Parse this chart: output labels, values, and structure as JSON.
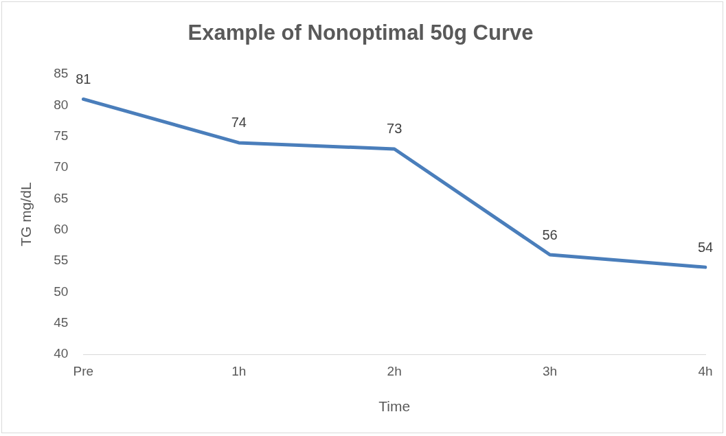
{
  "chart_data": {
    "type": "line",
    "title": "Example of Nonoptimal 50g Curve",
    "xlabel": "Time",
    "ylabel": "TG mg/dL",
    "categories": [
      "Pre",
      "1h",
      "2h",
      "3h",
      "4h"
    ],
    "series": [
      {
        "color": "#4a7ebb",
        "values": [
          81,
          74,
          73,
          56,
          54
        ]
      }
    ],
    "ylim": [
      40,
      85
    ],
    "yticks": [
      40,
      45,
      50,
      55,
      60,
      65,
      70,
      75,
      80,
      85
    ],
    "grid": false,
    "legend": false,
    "marker": "none",
    "line_style": "solid",
    "data_labels": true
  }
}
